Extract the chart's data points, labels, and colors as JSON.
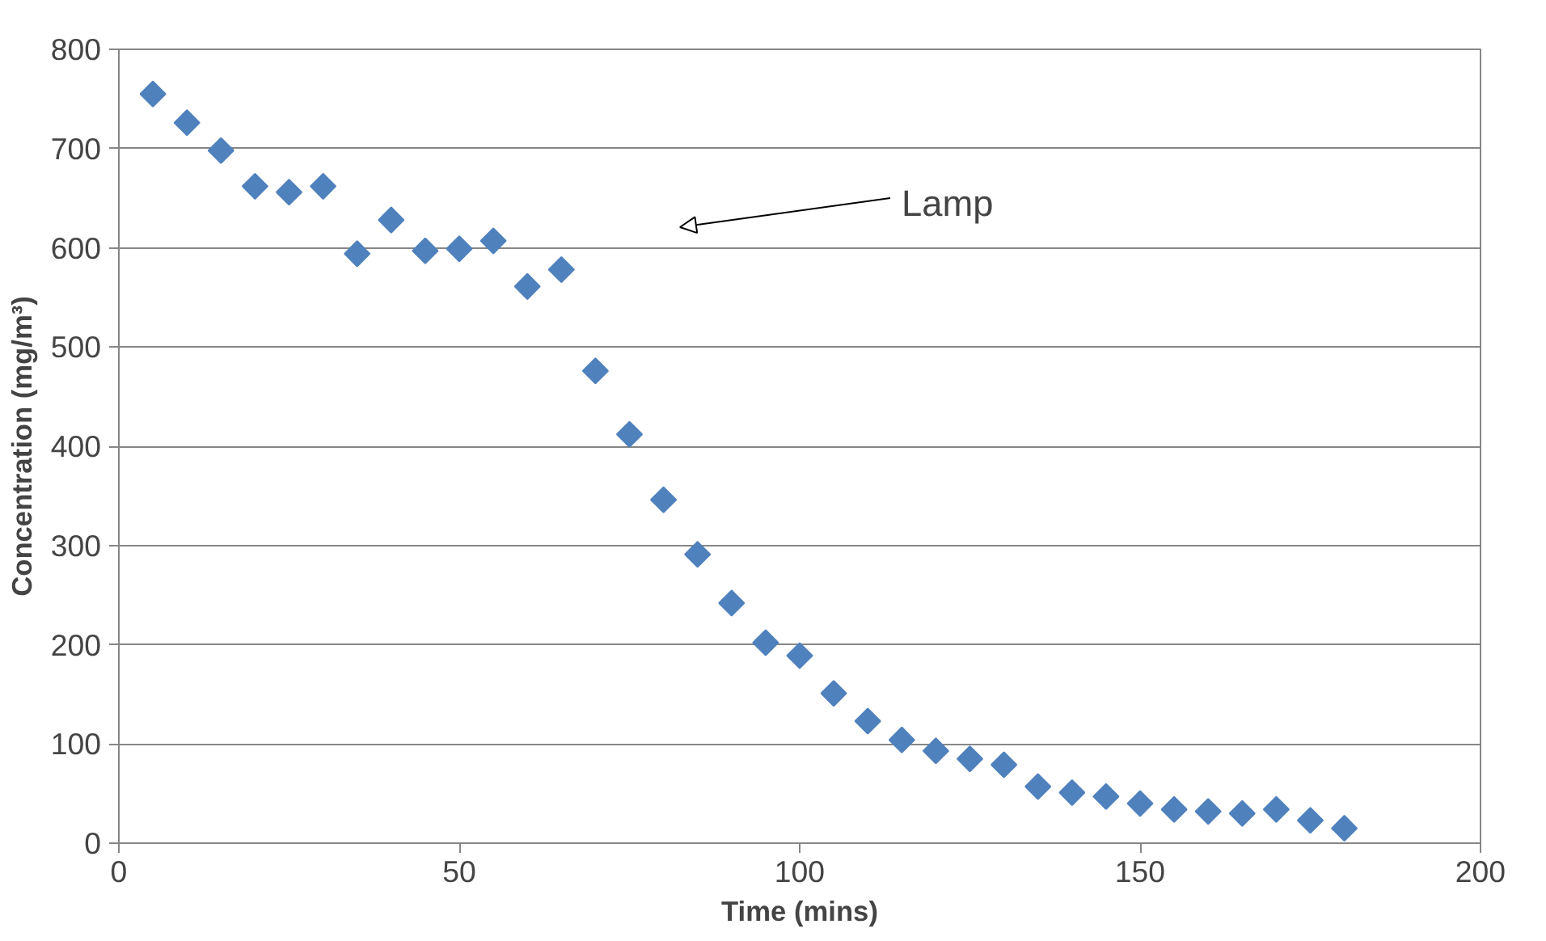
{
  "chart_data": {
    "type": "scatter",
    "xlabel": "Time (mins)",
    "ylabel": "Concentration (mg/m³)",
    "x": [
      5,
      10,
      15,
      20,
      25,
      30,
      35,
      40,
      45,
      50,
      55,
      60,
      65,
      70,
      75,
      80,
      85,
      90,
      95,
      100,
      105,
      110,
      115,
      120,
      125,
      130,
      135,
      140,
      145,
      150,
      155,
      160,
      165,
      170,
      175,
      180
    ],
    "series": [
      {
        "color": "#4f81bd",
        "values": [
          755,
          726,
          698,
          662,
          656,
          662,
          594,
          628,
          597,
          599,
          607,
          561,
          578,
          476,
          412,
          346,
          291,
          242,
          202,
          189,
          151,
          123,
          104,
          93,
          85,
          79,
          57,
          51,
          47,
          40,
          34,
          32,
          30,
          34,
          23,
          15
        ]
      }
    ],
    "xlim": [
      0,
      200
    ],
    "xticks": [
      0,
      50,
      100,
      150,
      200
    ],
    "ylim": [
      0,
      800
    ],
    "yticks": [
      0,
      100,
      200,
      300,
      400,
      500,
      600,
      700,
      800
    ],
    "grid": "y",
    "marker": "diamond",
    "annotations": [
      "Lamp"
    ]
  }
}
